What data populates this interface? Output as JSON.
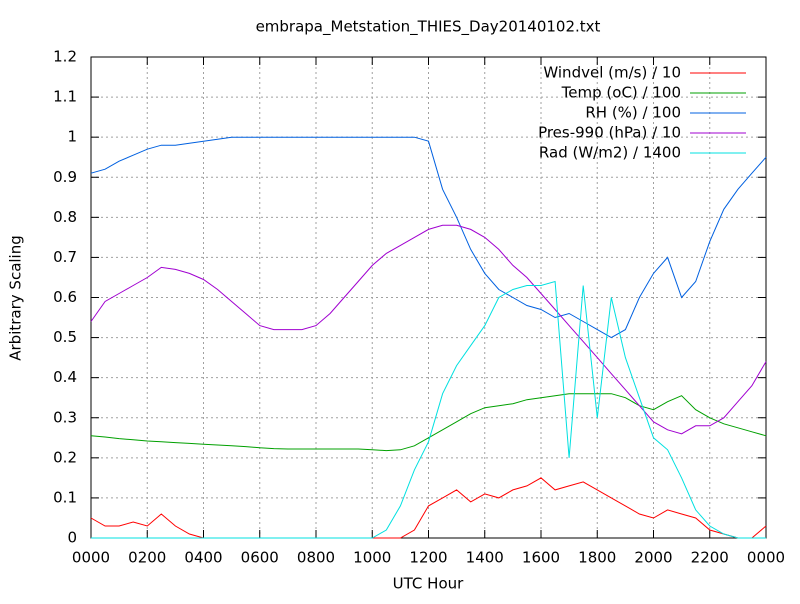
{
  "chart_data": {
    "type": "line",
    "title": "embrapa_Metstation_THIES_Day20140102.txt",
    "x_label": "UTC Hour",
    "y_label": "Arbitrary Scaling",
    "x": [
      0,
      0.5,
      1,
      1.5,
      2,
      2.5,
      3,
      3.5,
      4,
      4.5,
      5,
      5.5,
      6,
      6.5,
      7,
      7.5,
      8,
      8.5,
      9,
      9.5,
      10,
      10.5,
      11,
      11.5,
      12,
      12.5,
      13,
      13.5,
      14,
      14.5,
      15,
      15.5,
      16,
      16.5,
      17,
      17.5,
      18,
      18.5,
      19,
      19.5,
      20,
      20.5,
      21,
      21.5,
      22,
      22.5,
      23,
      23.5,
      24
    ],
    "series": [
      {
        "name": "Windvel (m/s) / 10",
        "color": "#ff0000",
        "values": [
          0.05,
          0.03,
          0.03,
          0.04,
          0.03,
          0.06,
          0.03,
          0.01,
          0,
          0,
          0,
          0,
          0,
          0,
          0,
          0,
          0,
          0,
          0,
          0,
          0,
          0,
          0,
          0.02,
          0.08,
          0.1,
          0.12,
          0.09,
          0.11,
          0.1,
          0.12,
          0.13,
          0.15,
          0.12,
          0.13,
          0.14,
          0.12,
          0.1,
          0.08,
          0.06,
          0.05,
          0.07,
          0.06,
          0.05,
          0.02,
          0.01,
          0,
          0,
          0.03
        ]
      },
      {
        "name": "Temp (oC) / 100",
        "color": "#00a000",
        "values": [
          0.255,
          0.252,
          0.248,
          0.245,
          0.242,
          0.24,
          0.238,
          0.236,
          0.234,
          0.232,
          0.23,
          0.228,
          0.225,
          0.223,
          0.222,
          0.222,
          0.222,
          0.222,
          0.222,
          0.222,
          0.22,
          0.218,
          0.22,
          0.23,
          0.25,
          0.27,
          0.29,
          0.31,
          0.325,
          0.33,
          0.335,
          0.345,
          0.35,
          0.355,
          0.36,
          0.36,
          0.36,
          0.36,
          0.35,
          0.33,
          0.32,
          0.34,
          0.355,
          0.32,
          0.3,
          0.285,
          0.275,
          0.265,
          0.255
        ]
      },
      {
        "name": "RH (%) / 100",
        "color": "#0060e0",
        "values": [
          0.91,
          0.92,
          0.94,
          0.955,
          0.97,
          0.98,
          0.98,
          0.985,
          0.99,
          0.995,
          1,
          1,
          1,
          1,
          1,
          1,
          1,
          1,
          1,
          1,
          1,
          1,
          1,
          1,
          0.99,
          0.87,
          0.8,
          0.72,
          0.66,
          0.62,
          0.6,
          0.58,
          0.57,
          0.55,
          0.56,
          0.54,
          0.52,
          0.5,
          0.52,
          0.6,
          0.66,
          0.7,
          0.6,
          0.64,
          0.74,
          0.82,
          0.87,
          0.91,
          0.95
        ]
      },
      {
        "name": "Pres-990 (hPa) / 10",
        "color": "#a000d0",
        "values": [
          0.54,
          0.59,
          0.61,
          0.63,
          0.65,
          0.675,
          0.67,
          0.66,
          0.645,
          0.62,
          0.59,
          0.56,
          0.53,
          0.52,
          0.52,
          0.52,
          0.53,
          0.56,
          0.6,
          0.64,
          0.68,
          0.71,
          0.73,
          0.75,
          0.77,
          0.78,
          0.78,
          0.77,
          0.75,
          0.72,
          0.68,
          0.65,
          0.61,
          0.57,
          0.53,
          0.49,
          0.45,
          0.41,
          0.37,
          0.33,
          0.29,
          0.27,
          0.26,
          0.28,
          0.28,
          0.3,
          0.34,
          0.38,
          0.44
        ]
      },
      {
        "name": "Rad (W/m2) / 1400",
        "color": "#00e0e0",
        "values": [
          0,
          0,
          0,
          0,
          0,
          0,
          0,
          0,
          0,
          0,
          0,
          0,
          0,
          0,
          0,
          0,
          0,
          0,
          0,
          0,
          0,
          0.02,
          0.08,
          0.17,
          0.24,
          0.36,
          0.43,
          0.48,
          0.53,
          0.6,
          0.62,
          0.63,
          0.63,
          0.64,
          0.2,
          0.63,
          0.3,
          0.6,
          0.45,
          0.35,
          0.25,
          0.22,
          0.15,
          0.07,
          0.03,
          0.01,
          0,
          0,
          0
        ]
      }
    ],
    "xlim": [
      0,
      24
    ],
    "xticks": [
      {
        "value": 0,
        "label": "0000"
      },
      {
        "value": 2,
        "label": "0200"
      },
      {
        "value": 4,
        "label": "0400"
      },
      {
        "value": 6,
        "label": "0600"
      },
      {
        "value": 8,
        "label": "0800"
      },
      {
        "value": 10,
        "label": "1000"
      },
      {
        "value": 12,
        "label": "1200"
      },
      {
        "value": 14,
        "label": "1400"
      },
      {
        "value": 16,
        "label": "1600"
      },
      {
        "value": 18,
        "label": "1800"
      },
      {
        "value": 20,
        "label": "2000"
      },
      {
        "value": 22,
        "label": "2200"
      },
      {
        "value": 24,
        "label": "0000"
      }
    ],
    "ylim": [
      0,
      1.2
    ],
    "yticks": [
      0,
      0.1,
      0.2,
      0.3,
      0.4,
      0.5,
      0.6,
      0.7,
      0.8,
      0.9,
      1,
      1.1,
      1.2
    ],
    "grid": true,
    "legend": "top-right"
  }
}
